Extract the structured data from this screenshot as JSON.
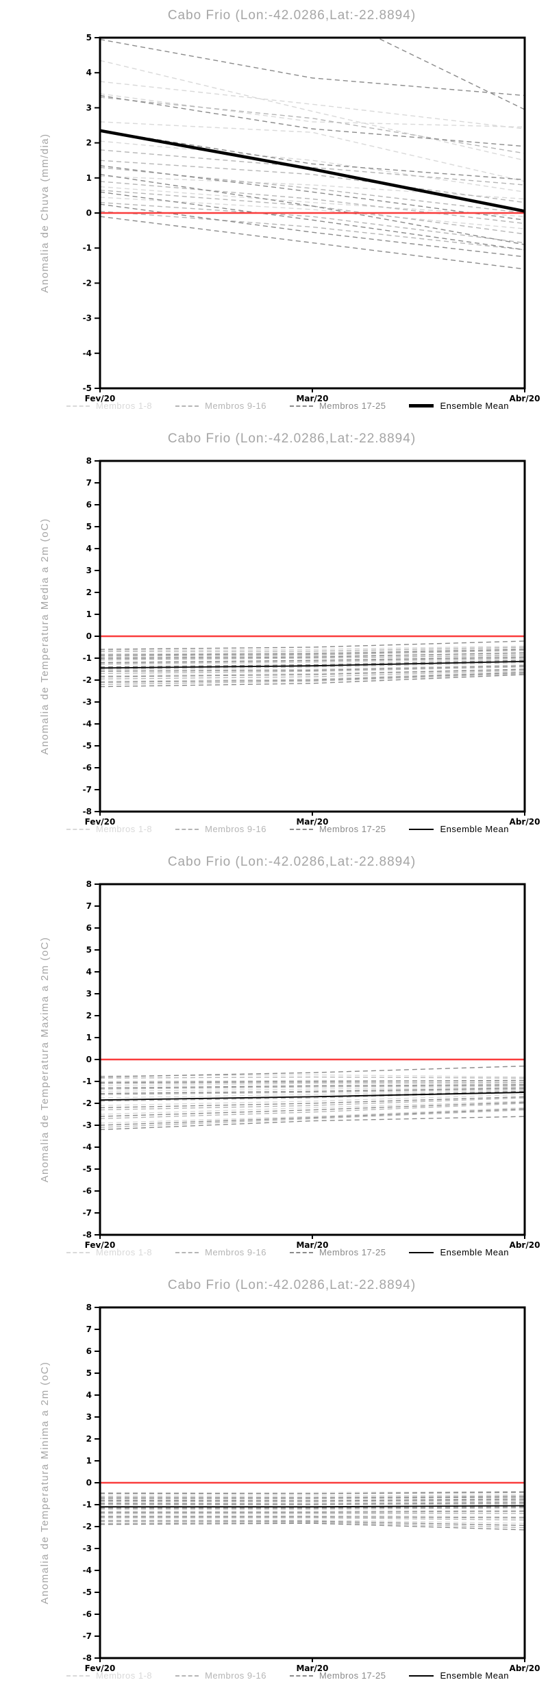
{
  "page": {
    "background": "#ffffff"
  },
  "colors": {
    "title_gray": "#a5a5a5",
    "members_1_8": "#d9d9d9",
    "members_9_16": "#b5b5b5",
    "members_17_25": "#8a8a8a",
    "ensemble_mean": "#000000",
    "zero_line_red": "#fa3c3c",
    "axis": "#000000"
  },
  "chart_data": [
    {
      "type": "line",
      "title": "Cabo Frio (Lon:-42.0286,Lat:-22.8894)",
      "ylabel": "Anomalia de Chuva (mm/dia)",
      "x_categories": [
        "Fev/20",
        "Mar/20",
        "Abr/20"
      ],
      "ylim": [
        -5,
        5
      ],
      "yticks": [
        5,
        4,
        3,
        2,
        1,
        0,
        -1,
        -2,
        -3,
        -4,
        -5
      ],
      "grid": false,
      "legend_position": "bottom",
      "zero_line": {
        "value": 0,
        "color": "#fa3c3c"
      },
      "groups": [
        {
          "name": "Membros 1-8",
          "color": "#d9d9d9",
          "style": "dashed",
          "members": [
            [
              3.75,
              3.1,
              2.4
            ],
            [
              3.4,
              2.6,
              2.45
            ],
            [
              2.6,
              2.3,
              0.9
            ],
            [
              2.05,
              1.5,
              0.6
            ],
            [
              1.05,
              0.8,
              0.4
            ],
            [
              0.75,
              0.3,
              -0.1
            ],
            [
              0.45,
              0.1,
              -0.45
            ],
            [
              4.35,
              2.9,
              1.5
            ]
          ]
        },
        {
          "name": "Membros 9-16",
          "color": "#b5b5b5",
          "style": "dashed",
          "members": [
            [
              3.3,
              2.7,
              1.7
            ],
            [
              1.8,
              1.3,
              0.8
            ],
            [
              1.5,
              1.1,
              0.3
            ],
            [
              1.3,
              0.7,
              0.0
            ],
            [
              0.9,
              0.4,
              -0.3
            ],
            [
              0.65,
              0.2,
              -0.6
            ],
            [
              0.3,
              -0.1,
              -0.85
            ],
            [
              0.05,
              -0.4,
              -1.05
            ]
          ]
        },
        {
          "name": "Membros 17-25",
          "color": "#8a8a8a",
          "style": "dashed",
          "members": [
            [
              4.95,
              3.85,
              3.35
            ],
            [
              6.2,
              5.9,
              2.95
            ],
            [
              3.35,
              2.4,
              1.9
            ],
            [
              2.35,
              1.4,
              0.95
            ],
            [
              1.35,
              0.6,
              -0.2
            ],
            [
              1.1,
              0.2,
              -0.9
            ],
            [
              0.6,
              -0.2,
              -1.05
            ],
            [
              0.25,
              -0.55,
              -1.25
            ],
            [
              -0.1,
              -0.85,
              -1.6
            ]
          ]
        }
      ],
      "mean": {
        "name": "Ensemble Mean",
        "color": "#000000",
        "style": "solid",
        "thick": true,
        "values": [
          2.35,
          1.25,
          0.05
        ]
      }
    },
    {
      "type": "line",
      "title": "Cabo Frio (Lon:-42.0286,Lat:-22.8894)",
      "ylabel": "Anomalia de Temperatura Media a 2m (oC)",
      "x_categories": [
        "Fev/20",
        "Mar/20",
        "Abr/20"
      ],
      "ylim": [
        -8,
        8
      ],
      "yticks": [
        8,
        7,
        6,
        5,
        4,
        3,
        2,
        1,
        0,
        -1,
        -2,
        -3,
        -4,
        -5,
        -6,
        -7,
        -8
      ],
      "grid": false,
      "legend_position": "bottom",
      "zero_line": {
        "value": 0,
        "color": "#fa3c3c"
      },
      "groups": [
        {
          "name": "Membros 1-8",
          "color": "#d9d9d9",
          "style": "dashed",
          "members": [
            [
              -0.65,
              -0.6,
              -0.45
            ],
            [
              -0.8,
              -0.75,
              -0.55
            ],
            [
              -0.95,
              -0.9,
              -0.8
            ],
            [
              -1.1,
              -1.0,
              -0.9
            ],
            [
              -1.3,
              -1.2,
              -1.05
            ],
            [
              -1.55,
              -1.5,
              -1.3
            ],
            [
              -1.8,
              -1.7,
              -1.5
            ],
            [
              -2.05,
              -1.95,
              -1.6
            ]
          ]
        },
        {
          "name": "Membros 9-16",
          "color": "#b5b5b5",
          "style": "dashed",
          "members": [
            [
              -0.7,
              -0.68,
              -0.5
            ],
            [
              -0.9,
              -0.85,
              -0.65
            ],
            [
              -1.05,
              -1.0,
              -0.85
            ],
            [
              -1.25,
              -1.15,
              -1.0
            ],
            [
              -1.5,
              -1.4,
              -1.2
            ],
            [
              -1.7,
              -1.6,
              -1.4
            ],
            [
              -1.95,
              -1.85,
              -1.55
            ],
            [
              -2.2,
              -2.05,
              -1.7
            ]
          ]
        },
        {
          "name": "Membros 17-25",
          "color": "#8a8a8a",
          "style": "dashed",
          "members": [
            [
              -0.6,
              -0.5,
              -0.22
            ],
            [
              -0.85,
              -0.8,
              -0.6
            ],
            [
              -1.0,
              -0.95,
              -0.75
            ],
            [
              -1.2,
              -1.1,
              -0.95
            ],
            [
              -1.4,
              -1.3,
              -1.1
            ],
            [
              -1.6,
              -1.55,
              -1.35
            ],
            [
              -1.85,
              -1.75,
              -1.5
            ],
            [
              -2.1,
              -2.0,
              -1.65
            ],
            [
              -2.3,
              -2.15,
              -1.75
            ]
          ]
        }
      ],
      "mean": {
        "name": "Ensemble Mean",
        "color": "#000000",
        "style": "solid",
        "thick": false,
        "values": [
          -1.45,
          -1.35,
          -1.15
        ]
      }
    },
    {
      "type": "line",
      "title": "Cabo Frio (Lon:-42.0286,Lat:-22.8894)",
      "ylabel": "Anomalia de Temperatura Maxima a 2m (oC)",
      "x_categories": [
        "Fev/20",
        "Mar/20",
        "Abr/20"
      ],
      "ylim": [
        -8,
        8
      ],
      "yticks": [
        8,
        7,
        6,
        5,
        4,
        3,
        2,
        1,
        0,
        -1,
        -2,
        -3,
        -4,
        -5,
        -6,
        -7,
        -8
      ],
      "grid": false,
      "legend_position": "bottom",
      "zero_line": {
        "value": 0,
        "color": "#fa3c3c"
      },
      "groups": [
        {
          "name": "Membros 1-8",
          "color": "#d9d9d9",
          "style": "dashed",
          "members": [
            [
              -0.75,
              -0.7,
              -0.8
            ],
            [
              -1.0,
              -0.95,
              -1.0
            ],
            [
              -1.2,
              -1.1,
              -1.1
            ],
            [
              -1.45,
              -1.35,
              -1.25
            ],
            [
              -1.75,
              -1.6,
              -1.4
            ],
            [
              -2.1,
              -1.9,
              -1.6
            ],
            [
              -2.5,
              -2.2,
              -1.9
            ],
            [
              -2.9,
              -2.6,
              -2.2
            ]
          ]
        },
        {
          "name": "Membros 9-16",
          "color": "#b5b5b5",
          "style": "dashed",
          "members": [
            [
              -0.85,
              -0.8,
              -0.85
            ],
            [
              -1.1,
              -1.05,
              -1.05
            ],
            [
              -1.35,
              -1.25,
              -1.2
            ],
            [
              -1.6,
              -1.5,
              -1.35
            ],
            [
              -1.9,
              -1.75,
              -1.5
            ],
            [
              -2.3,
              -2.1,
              -1.75
            ],
            [
              -2.7,
              -2.4,
              -2.0
            ],
            [
              -3.1,
              -2.7,
              -2.3
            ]
          ]
        },
        {
          "name": "Membros 17-25",
          "color": "#8a8a8a",
          "style": "dashed",
          "members": [
            [
              -0.8,
              -0.6,
              -0.3
            ],
            [
              -1.05,
              -1.0,
              -0.95
            ],
            [
              -1.3,
              -1.2,
              -1.15
            ],
            [
              -1.55,
              -1.45,
              -1.3
            ],
            [
              -1.85,
              -1.7,
              -1.45
            ],
            [
              -2.2,
              -2.0,
              -1.7
            ],
            [
              -2.6,
              -2.3,
              -1.95
            ],
            [
              -3.0,
              -2.65,
              -2.25
            ],
            [
              -3.2,
              -2.8,
              -2.6
            ]
          ]
        }
      ],
      "mean": {
        "name": "Ensemble Mean",
        "color": "#000000",
        "style": "solid",
        "thick": false,
        "values": [
          -1.85,
          -1.7,
          -1.5
        ]
      }
    },
    {
      "type": "line",
      "title": "Cabo Frio (Lon:-42.0286,Lat:-22.8894)",
      "ylabel": "Anomalia de Temperatura Minima a 2m (oC)",
      "x_categories": [
        "Fev/20",
        "Mar/20",
        "Abr/20"
      ],
      "ylim": [
        -8,
        8
      ],
      "yticks": [
        8,
        7,
        6,
        5,
        4,
        3,
        2,
        1,
        0,
        -1,
        -2,
        -3,
        -4,
        -5,
        -6,
        -7,
        -8
      ],
      "grid": false,
      "legend_position": "bottom",
      "zero_line": {
        "value": 0,
        "color": "#fa3c3c"
      },
      "groups": [
        {
          "name": "Membros 1-8",
          "color": "#d9d9d9",
          "style": "dashed",
          "members": [
            [
              -0.45,
              -0.45,
              -0.4
            ],
            [
              -0.6,
              -0.6,
              -0.55
            ],
            [
              -0.75,
              -0.75,
              -0.7
            ],
            [
              -0.9,
              -0.9,
              -0.85
            ],
            [
              -1.1,
              -1.1,
              -1.0
            ],
            [
              -1.3,
              -1.3,
              -1.25
            ],
            [
              -1.5,
              -1.5,
              -1.55
            ],
            [
              -1.7,
              -1.7,
              -1.85
            ]
          ]
        },
        {
          "name": "Membros 9-16",
          "color": "#b5b5b5",
          "style": "dashed",
          "members": [
            [
              -0.5,
              -0.5,
              -0.45
            ],
            [
              -0.65,
              -0.67,
              -0.6
            ],
            [
              -0.85,
              -0.85,
              -0.8
            ],
            [
              -1.0,
              -1.0,
              -0.95
            ],
            [
              -1.2,
              -1.2,
              -1.15
            ],
            [
              -1.4,
              -1.4,
              -1.4
            ],
            [
              -1.6,
              -1.6,
              -1.7
            ],
            [
              -1.85,
              -1.8,
              -2.05
            ]
          ]
        },
        {
          "name": "Membros 17-25",
          "color": "#8a8a8a",
          "style": "dashed",
          "members": [
            [
              -0.48,
              -0.5,
              -0.42
            ],
            [
              -0.7,
              -0.7,
              -0.65
            ],
            [
              -0.8,
              -0.82,
              -0.75
            ],
            [
              -0.95,
              -0.97,
              -0.9
            ],
            [
              -1.15,
              -1.15,
              -1.1
            ],
            [
              -1.35,
              -1.35,
              -1.3
            ],
            [
              -1.55,
              -1.55,
              -1.6
            ],
            [
              -1.75,
              -1.75,
              -1.95
            ],
            [
              -1.9,
              -1.85,
              -2.15
            ]
          ]
        }
      ],
      "mean": {
        "name": "Ensemble Mean",
        "color": "#000000",
        "style": "solid",
        "thick": false,
        "values": [
          -1.1,
          -1.1,
          -1.05
        ]
      }
    }
  ]
}
